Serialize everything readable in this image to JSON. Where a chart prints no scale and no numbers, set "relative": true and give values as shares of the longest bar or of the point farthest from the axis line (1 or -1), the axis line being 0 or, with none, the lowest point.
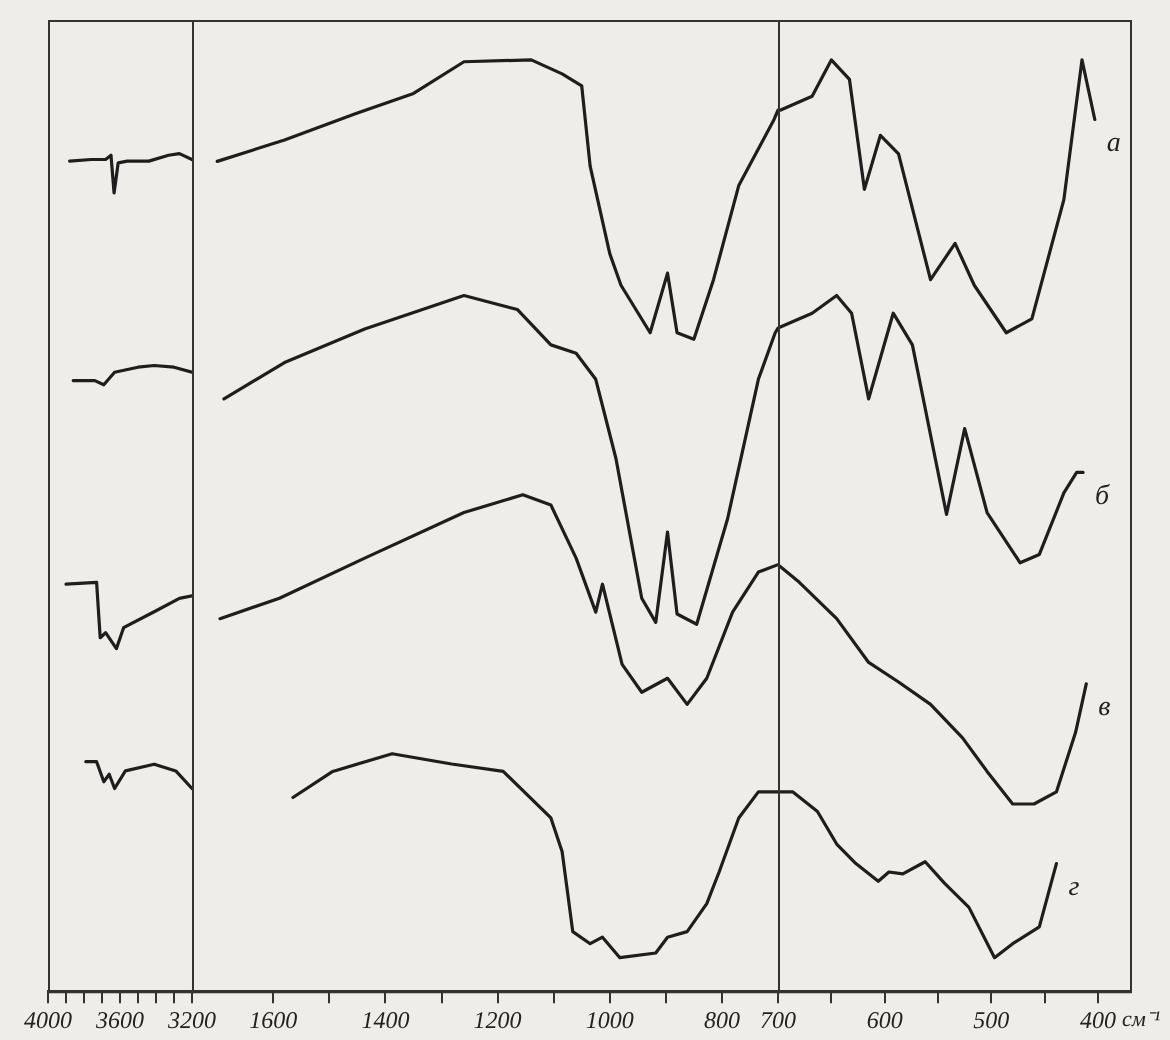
{
  "chart_data": [
    {
      "type": "line",
      "relative": true,
      "tick_labels": "x",
      "xlim": [
        4000,
        3200
      ],
      "xticks": [
        4000,
        {
          "value": 3900,
          "label": null
        },
        {
          "value": 3800,
          "label": null
        },
        {
          "value": 3700,
          "label": null
        },
        3600,
        {
          "value": 3500,
          "label": null
        },
        {
          "value": 3400,
          "label": null
        },
        {
          "value": 3300,
          "label": null
        },
        3200
      ],
      "series": [
        {
          "color": "#1e1e1e",
          "x": [
            3880,
            3760,
            3680,
            3650,
            3633,
            3610,
            3560,
            3440,
            3330,
            3270,
            3200
          ],
          "values": [
            0.991,
            0.993,
            0.993,
            0.998,
            0.953,
            0.989,
            0.991,
            0.991,
            0.998,
            1.0,
            0.993
          ]
        },
        {
          "color": "#1e1e1e",
          "x": [
            3860,
            3740,
            3690,
            3630,
            3500,
            3410,
            3300,
            3200
          ],
          "values": [
            0.729,
            0.729,
            0.724,
            0.739,
            0.745,
            0.747,
            0.745,
            0.739
          ]
        },
        {
          "color": "#1e1e1e",
          "x": [
            3900,
            3730,
            3710,
            3680,
            3620,
            3580,
            3410,
            3270,
            3200
          ],
          "values": [
            0.486,
            0.488,
            0.422,
            0.428,
            0.409,
            0.434,
            0.453,
            0.469,
            0.472
          ]
        },
        {
          "color": "#1e1e1e",
          "x": [
            3790,
            3730,
            3690,
            3660,
            3630,
            3570,
            3410,
            3290,
            3200
          ],
          "values": [
            0.274,
            0.274,
            0.25,
            0.259,
            0.242,
            0.263,
            0.271,
            0.263,
            0.242
          ]
        }
      ]
    },
    {
      "type": "line",
      "relative": true,
      "tick_labels": "x",
      "xlim": [
        1745,
        700
      ],
      "xticks": [
        1600,
        {
          "value": 1500,
          "label": null
        },
        1400,
        {
          "value": 1300,
          "label": null
        },
        1200,
        {
          "value": 1100,
          "label": null
        },
        1000,
        {
          "value": 900,
          "label": null
        },
        800
      ],
      "series": [
        {
          "color": "#1e1e1e",
          "x": [
            1700,
            1580,
            1455,
            1350,
            1260,
            1140,
            1085,
            1050,
            1035,
            1000,
            980,
            928,
            897,
            880,
            850,
            815,
            770,
            707,
            700
          ],
          "values": [
            0.891,
            0.914,
            0.942,
            0.964,
            0.998,
            1.0,
            0.985,
            0.972,
            0.886,
            0.792,
            0.758,
            0.707,
            0.771,
            0.707,
            0.7,
            0.764,
            0.865,
            0.936,
            0.946
          ]
        },
        {
          "color": "#1e1e1e",
          "x": [
            1688,
            1580,
            1437,
            1260,
            1165,
            1105,
            1060,
            1025,
            989,
            943,
            918,
            897,
            880,
            845,
            790,
            735,
            705,
            700
          ],
          "values": [
            0.636,
            0.675,
            0.711,
            0.747,
            0.732,
            0.694,
            0.685,
            0.657,
            0.572,
            0.422,
            0.396,
            0.493,
            0.405,
            0.394,
            0.507,
            0.657,
            0.707,
            0.712
          ]
        },
        {
          "color": "#1e1e1e",
          "x": [
            1695,
            1589,
            1437,
            1260,
            1155,
            1105,
            1060,
            1025,
            1013,
            978,
            943,
            897,
            862,
            827,
            781,
            735,
            700
          ],
          "values": [
            0.4,
            0.422,
            0.465,
            0.514,
            0.533,
            0.522,
            0.465,
            0.407,
            0.437,
            0.351,
            0.321,
            0.336,
            0.308,
            0.336,
            0.407,
            0.45,
            0.458
          ]
        },
        {
          "color": "#1e1e1e",
          "x": [
            1565,
            1494,
            1388,
            1282,
            1190,
            1105,
            1085,
            1066,
            1035,
            1013,
            982,
            918,
            897,
            862,
            827,
            805,
            770,
            735,
            700
          ],
          "values": [
            0.208,
            0.236,
            0.255,
            0.244,
            0.236,
            0.186,
            0.15,
            0.064,
            0.051,
            0.058,
            0.036,
            0.041,
            0.058,
            0.064,
            0.094,
            0.128,
            0.186,
            0.214,
            0.214
          ]
        }
      ]
    },
    {
      "type": "line",
      "relative": true,
      "tick_labels": "x",
      "xlabel": "см⁻¹",
      "xlim": [
        700,
        370
      ],
      "xticks": [
        700,
        {
          "value": 650,
          "label": null
        },
        600,
        {
          "value": 550,
          "label": null
        },
        500,
        {
          "value": 450,
          "label": null
        },
        400
      ],
      "series": [
        {
          "name": "а",
          "color": "#1e1e1e",
          "x": [
            700,
            698,
            668,
            650,
            633,
            619,
            604,
            587,
            557,
            534,
            516,
            486,
            462,
            432,
            415,
            403
          ],
          "values": [
            0.946,
            0.946,
            0.961,
            1.0,
            0.979,
            0.861,
            0.919,
            0.899,
            0.764,
            0.803,
            0.758,
            0.707,
            0.722,
            0.85,
            1.0,
            0.936
          ]
        },
        {
          "name": "б",
          "color": "#1e1e1e",
          "x": [
            700,
            668,
            645,
            631,
            615,
            592,
            574,
            542,
            525,
            504,
            473,
            455,
            432,
            420,
            414
          ],
          "values": [
            0.712,
            0.728,
            0.747,
            0.728,
            0.636,
            0.728,
            0.694,
            0.512,
            0.604,
            0.514,
            0.46,
            0.469,
            0.535,
            0.557,
            0.557
          ]
        },
        {
          "name": "в",
          "color": "#1e1e1e",
          "x": [
            700,
            680,
            645,
            615,
            587,
            557,
            527,
            504,
            480,
            460,
            439,
            421,
            411
          ],
          "values": [
            0.458,
            0.439,
            0.4,
            0.353,
            0.332,
            0.308,
            0.272,
            0.236,
            0.201,
            0.201,
            0.214,
            0.278,
            0.33
          ]
        },
        {
          "name": "г",
          "color": "#1e1e1e",
          "x": [
            700,
            686,
            663,
            645,
            627,
            606,
            596,
            583,
            562,
            544,
            521,
            497,
            480,
            455,
            439
          ],
          "values": [
            0.214,
            0.214,
            0.193,
            0.158,
            0.137,
            0.118,
            0.128,
            0.126,
            0.139,
            0.116,
            0.09,
            0.036,
            0.051,
            0.069,
            0.137
          ]
        }
      ]
    }
  ]
}
